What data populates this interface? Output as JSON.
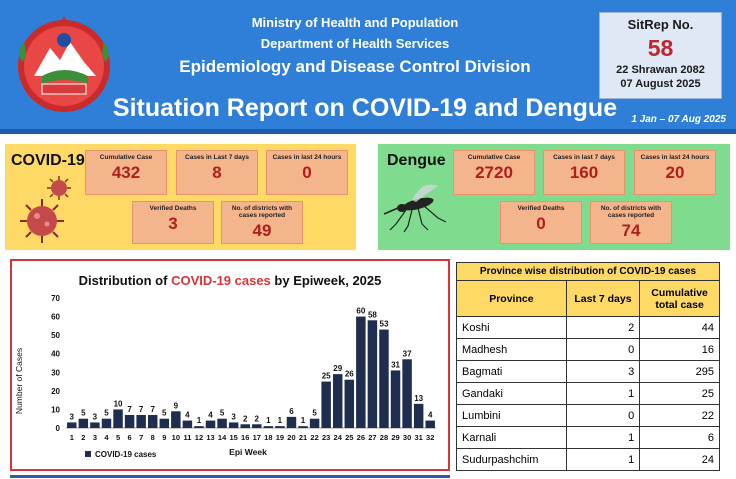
{
  "header": {
    "ministry": "Ministry of Health and Population",
    "department": "Department of Health Services",
    "division": "Epidemiology and Disease Control Division",
    "title": "Situation Report on COVID-19 and Dengue",
    "date_range": "1 Jan – 07 Aug 2025",
    "emblem_text": "स्वास्थ्य तथा जनसंख्या मन्त्रालय",
    "sitrep": {
      "label": "SitRep No.",
      "number": "58",
      "nepali_date": "22 Shrawan 2082",
      "english_date": "07 August 2025"
    }
  },
  "covid": {
    "title": "COVID-19",
    "cards": [
      {
        "label": "Cumulative Case",
        "value": "432"
      },
      {
        "label": "Cases in Last 7 days",
        "value": "8"
      },
      {
        "label": "Cases in last 24 hours",
        "value": "0"
      },
      {
        "label": "Verified Deaths",
        "value": "3"
      },
      {
        "label": "No. of districts with cases reported",
        "value": "49"
      }
    ]
  },
  "dengue": {
    "title": "Dengue",
    "cards": [
      {
        "label": "Cumulative Case",
        "value": "2720"
      },
      {
        "label": "Cases in last 7 days",
        "value": "160"
      },
      {
        "label": "Cases in last 24 hours",
        "value": "20"
      },
      {
        "label": "Verified Deaths",
        "value": "0"
      },
      {
        "label": "No. of districts with cases reported",
        "value": "74"
      }
    ]
  },
  "chart_data": {
    "type": "bar",
    "title_prefix": "Distribution of ",
    "title_highlight": "COVID-19 cases",
    "title_suffix": " by Epiweek, 2025",
    "xlabel": "Epi Week",
    "ylabel": "Number of Cases",
    "ylim": [
      0,
      70
    ],
    "yticks": [
      0,
      10,
      20,
      30,
      40,
      50,
      60,
      70
    ],
    "categories": [
      "1",
      "2",
      "3",
      "4",
      "5",
      "6",
      "7",
      "8",
      "9",
      "10",
      "11",
      "12",
      "13",
      "14",
      "15",
      "16",
      "17",
      "18",
      "19",
      "20",
      "21",
      "22",
      "23",
      "24",
      "25",
      "26",
      "27",
      "28",
      "29",
      "30",
      "31",
      "32"
    ],
    "series": [
      {
        "name": "COVID-19 cases",
        "values": [
          3,
          5,
          3,
          5,
          10,
          7,
          7,
          7,
          5,
          9,
          4,
          1,
          4,
          5,
          3,
          2,
          2,
          1,
          1,
          6,
          1,
          5,
          25,
          29,
          26,
          60,
          58,
          53,
          31,
          37,
          13,
          4
        ]
      }
    ],
    "bar_color": "#1f2d4f",
    "grid": false,
    "legend": "bottom-left"
  },
  "province_table": {
    "caption": "Province wise distribution of COVID-19 cases",
    "headers": [
      "Province",
      "Last 7 days",
      "Cumulative total case"
    ],
    "rows": [
      [
        "Koshi",
        "2",
        "44"
      ],
      [
        "Madhesh",
        "0",
        "16"
      ],
      [
        "Bagmati",
        "3",
        "295"
      ],
      [
        "Gandaki",
        "1",
        "25"
      ],
      [
        "Lumbini",
        "0",
        "22"
      ],
      [
        "Karnali",
        "1",
        "6"
      ],
      [
        "Sudurpashchim",
        "1",
        "24"
      ]
    ]
  },
  "colors": {
    "header_blue": "#2f7fd8",
    "covid_panel": "#ffd966",
    "dengue_panel": "#7fdc8f",
    "card_fill": "#f4b48c",
    "value_red": "#b01e1e",
    "chart_border": "#d9333a"
  }
}
